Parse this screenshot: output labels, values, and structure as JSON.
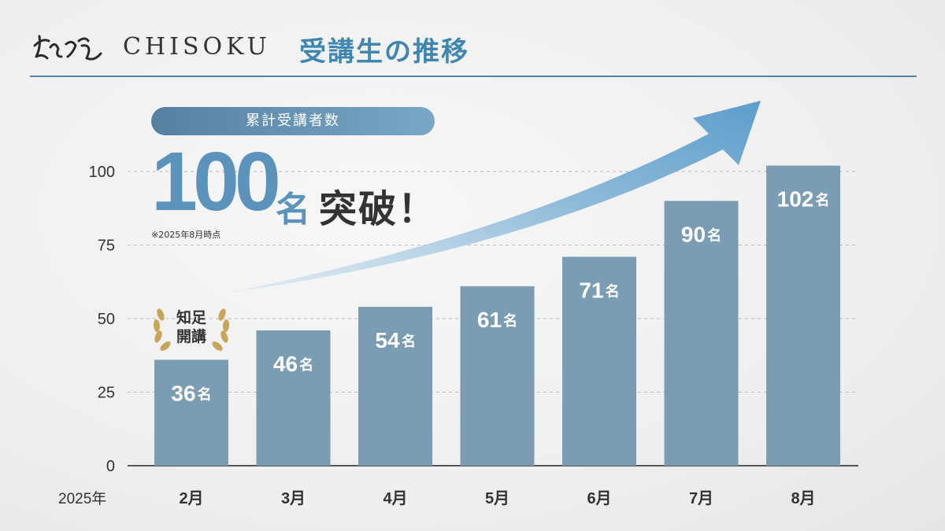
{
  "header": {
    "brand": "CHISOKU",
    "title": "受講生の推移"
  },
  "summary": {
    "pill_label": "累計受講者数",
    "big_number": "100",
    "big_unit": "名",
    "big_suffix": "突破！",
    "note": "※2025年8月時点"
  },
  "badge": {
    "line1": "知足",
    "line2": "開講"
  },
  "colors": {
    "bar": "#7a9db3",
    "accent": "#5b93bd",
    "axis": "#555555"
  },
  "chart_data": {
    "type": "bar",
    "year_label": "2025年",
    "categories": [
      "2月",
      "3月",
      "4月",
      "5月",
      "6月",
      "7月",
      "8月"
    ],
    "values": [
      36,
      46,
      54,
      61,
      71,
      90,
      102
    ],
    "value_unit": "名",
    "ylim": [
      0,
      100
    ],
    "yticks": [
      0,
      25,
      50,
      75,
      100
    ],
    "grid": true
  }
}
